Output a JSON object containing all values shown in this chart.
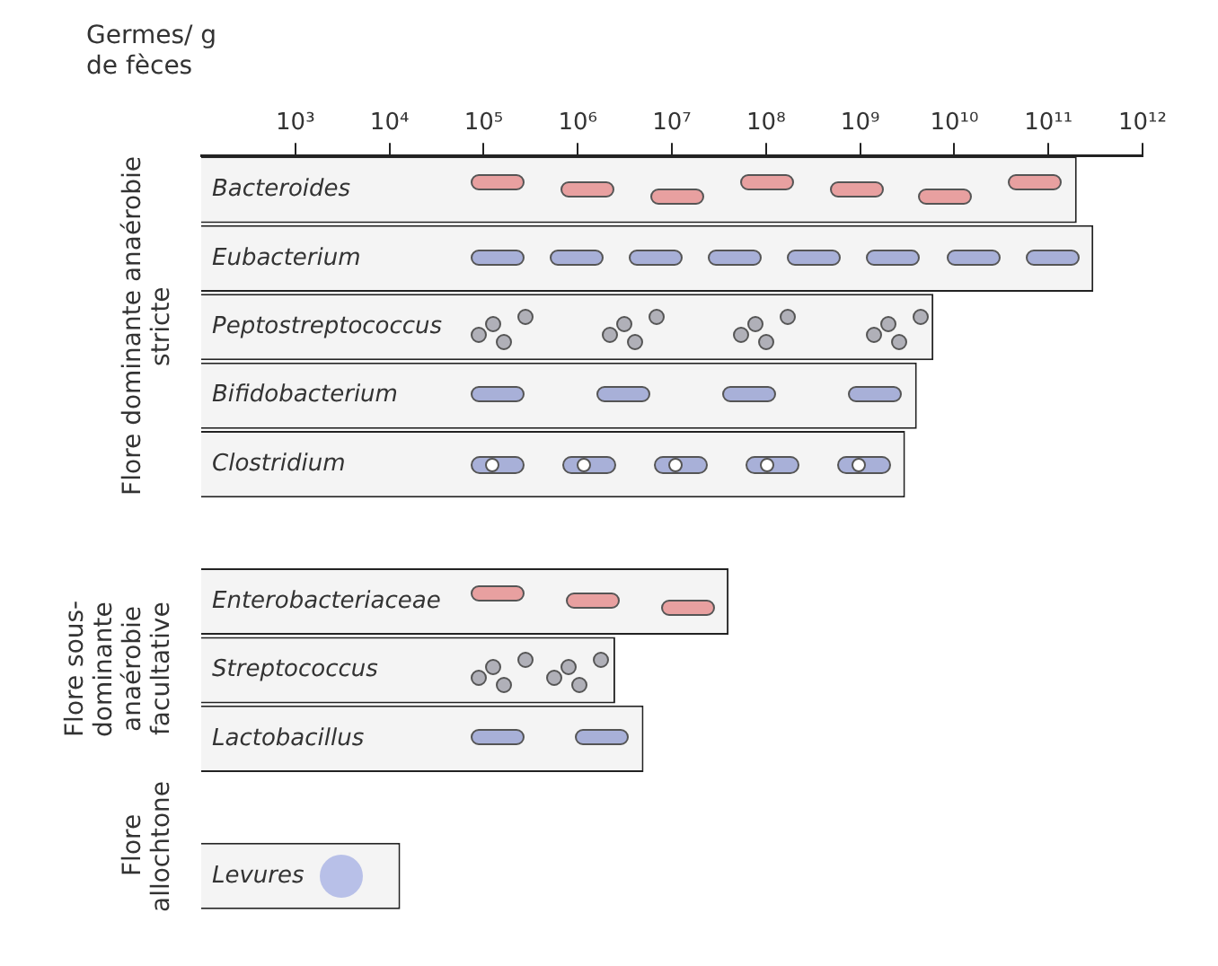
{
  "chart_data": {
    "type": "bar",
    "orientation": "horizontal",
    "log": "x",
    "xlabel": "Germes/ g de fèces",
    "categories": [
      "Bacteroides",
      "Eubacterium",
      "Peptostreptococcus",
      "Bifidobacterium",
      "Clostridium",
      null,
      "Enterobacteriaceae",
      "Streptococcus",
      "Lactobacillus",
      null,
      "Levures"
    ],
    "values": [
      200000000000,
      300000000000,
      6000000000,
      4000000000,
      3000000000,
      null,
      40000000,
      2500000,
      5000000,
      null,
      13000
    ],
    "color": "#f4f4f4",
    "xlim": [
      100,
      1000000000000
    ],
    "xticks": [
      {
        "value": 1000,
        "label": "10³"
      },
      {
        "value": 10000,
        "label": "10⁴"
      },
      {
        "value": 100000,
        "label": "10⁵"
      },
      {
        "value": 1000000,
        "label": "10⁶"
      },
      {
        "value": 10000000,
        "label": "10⁷"
      },
      {
        "value": 100000000,
        "label": "10⁸"
      },
      {
        "value": 1000000000,
        "label": "10⁹"
      },
      {
        "value": 10000000000,
        "label": "10¹⁰"
      },
      {
        "value": 100000000000,
        "label": "10¹¹"
      },
      {
        "value": 1000000000000,
        "label": "10¹²"
      }
    ],
    "annotations": [
      "Flore dominante anaérobie stricte",
      "Flore sous-dominante anaérobie facultative",
      "Flore allochtone"
    ]
  }
}
